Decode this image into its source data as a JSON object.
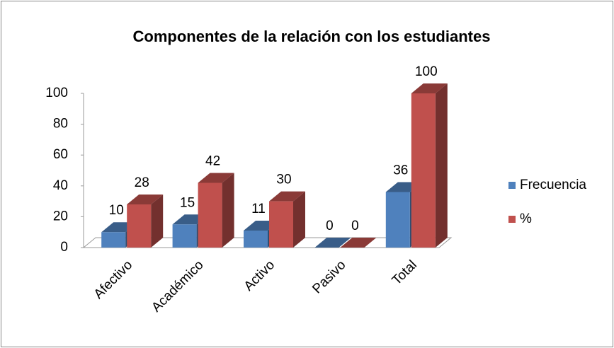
{
  "chart_data": {
    "type": "bar3d",
    "title": "Componentes de la relación con los estudiantes",
    "categories": [
      "Afectivo",
      "Académico",
      "Activo",
      "Pasivo",
      "Total"
    ],
    "series": [
      {
        "name": "Frecuencia",
        "color": "#4f81bd",
        "values": [
          10,
          15,
          11,
          0,
          36
        ]
      },
      {
        "name": "%",
        "color": "#c0504d",
        "values": [
          28,
          42,
          30,
          0,
          100
        ]
      }
    ],
    "ylim": [
      0,
      100
    ],
    "yticks": [
      0,
      20,
      40,
      60,
      80,
      100
    ],
    "grid": false,
    "legend": "right"
  }
}
